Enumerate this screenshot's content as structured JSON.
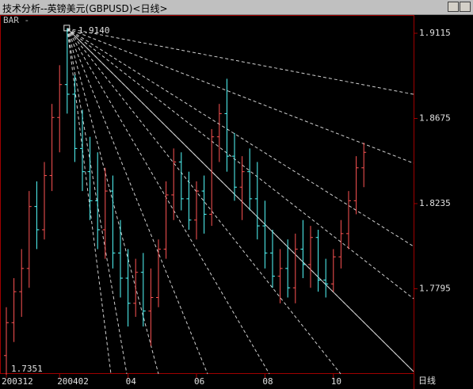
{
  "chart_data": {
    "type": "ohlc",
    "title": "技术分析--英镑美元(GBPUSD)<日线>",
    "indicator_label": "BAR -",
    "period_label": "日线",
    "max_label": "1.9140",
    "min_label": "1.7351",
    "up_color": "#ff5454",
    "down_color": "#54ffff",
    "categories": [
      "200312",
      null,
      null,
      null,
      null,
      null,
      null,
      "200402",
      null,
      null,
      null,
      null,
      null,
      null,
      null,
      null,
      "04",
      null,
      null,
      null,
      null,
      null,
      null,
      null,
      null,
      "06",
      null,
      null,
      null,
      null,
      null,
      null,
      null,
      null,
      "08",
      null,
      null,
      null,
      null,
      null,
      null,
      null,
      null,
      "10",
      null,
      null,
      null,
      null
    ],
    "open": [
      1.745,
      1.762,
      1.778,
      1.79,
      1.822,
      1.81,
      1.838,
      1.868,
      1.885,
      1.88,
      1.852,
      1.84,
      1.825,
      1.81,
      1.83,
      1.798,
      1.785,
      1.772,
      1.788,
      1.768,
      1.775,
      1.8,
      1.828,
      1.845,
      1.826,
      1.815,
      1.83,
      1.818,
      1.858,
      1.87,
      1.848,
      1.832,
      1.84,
      1.826,
      1.812,
      1.798,
      1.786,
      1.79,
      1.78,
      1.8,
      1.792,
      1.806,
      1.784,
      1.782,
      1.796,
      1.808,
      1.825,
      1.842
    ],
    "high": [
      1.77,
      1.785,
      1.8,
      1.83,
      1.835,
      1.845,
      1.875,
      1.895,
      1.914,
      1.89,
      1.872,
      1.858,
      1.85,
      1.842,
      1.838,
      1.815,
      1.8,
      1.795,
      1.798,
      1.79,
      1.805,
      1.835,
      1.852,
      1.85,
      1.84,
      1.835,
      1.838,
      1.862,
      1.875,
      1.888,
      1.86,
      1.848,
      1.852,
      1.845,
      1.825,
      1.81,
      1.8,
      1.805,
      1.808,
      1.815,
      1.812,
      1.81,
      1.795,
      1.8,
      1.815,
      1.83,
      1.848,
      1.855
    ],
    "low": [
      1.7351,
      1.752,
      1.765,
      1.78,
      1.8,
      1.805,
      1.83,
      1.85,
      1.87,
      1.845,
      1.83,
      1.815,
      1.8,
      1.795,
      1.79,
      1.775,
      1.76,
      1.765,
      1.76,
      1.75,
      1.77,
      1.795,
      1.815,
      1.82,
      1.81,
      1.805,
      1.808,
      1.812,
      1.845,
      1.84,
      1.825,
      1.815,
      1.82,
      1.805,
      1.79,
      1.78,
      1.772,
      1.775,
      1.772,
      1.785,
      1.78,
      1.778,
      1.775,
      1.778,
      1.79,
      1.8,
      1.818,
      1.832
    ],
    "close": [
      1.762,
      1.778,
      1.79,
      1.822,
      1.81,
      1.838,
      1.868,
      1.885,
      1.88,
      1.852,
      1.84,
      1.825,
      1.81,
      1.83,
      1.798,
      1.785,
      1.772,
      1.788,
      1.768,
      1.775,
      1.8,
      1.828,
      1.845,
      1.826,
      1.815,
      1.83,
      1.818,
      1.858,
      1.87,
      1.848,
      1.832,
      1.84,
      1.826,
      1.812,
      1.798,
      1.786,
      1.79,
      1.78,
      1.8,
      1.792,
      1.806,
      1.784,
      1.782,
      1.796,
      1.808,
      1.825,
      1.842,
      1.85
    ],
    "ylim": [
      1.7355,
      1.9205
    ],
    "yticks": [
      1.7795,
      1.8235,
      1.8675,
      1.9115
    ]
  }
}
